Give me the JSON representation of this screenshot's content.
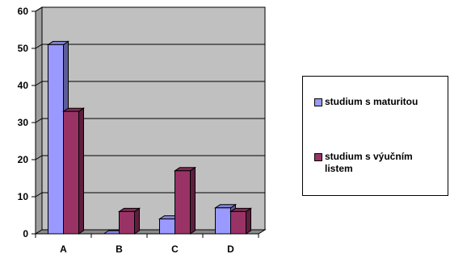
{
  "chart_data": {
    "type": "bar",
    "categories": [
      "A",
      "B",
      "C",
      "D"
    ],
    "series": [
      {
        "name": "studium s maturitou",
        "values": [
          51,
          0,
          4,
          7
        ],
        "color": "#9999ff"
      },
      {
        "name": "studium s výučním listem",
        "values": [
          33,
          6,
          17,
          6
        ],
        "color": "#993366"
      }
    ],
    "ylim": [
      0,
      60
    ],
    "yticks": [
      "0",
      "10",
      "20",
      "30",
      "40",
      "50",
      "60"
    ],
    "grid": true,
    "plot_background": "#c0c0c0",
    "legend_position": "right"
  }
}
